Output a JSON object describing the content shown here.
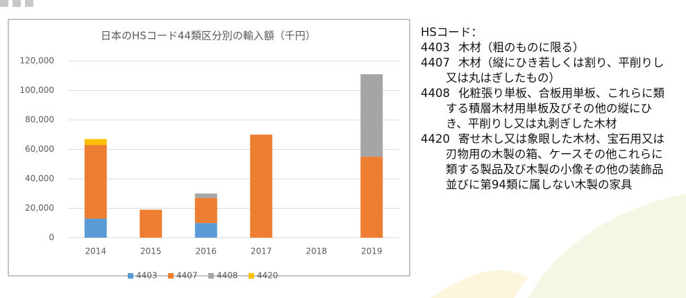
{
  "chart_data": {
    "type": "stacked-bar",
    "title": "日本のHSコード44類区分別の輸入額（千円）",
    "categories": [
      "2014",
      "2015",
      "2016",
      "2017",
      "2018",
      "2019"
    ],
    "series": [
      {
        "name": "4403",
        "color": "#5b9bd5",
        "values": [
          13000,
          0,
          10000,
          0,
          0,
          0
        ]
      },
      {
        "name": "4407",
        "color": "#ed7d31",
        "values": [
          50000,
          19000,
          17000,
          70000,
          0,
          55000
        ]
      },
      {
        "name": "4408",
        "color": "#a5a5a5",
        "values": [
          0,
          0,
          3000,
          0,
          0,
          56000
        ]
      },
      {
        "name": "4420",
        "color": "#ffc000",
        "values": [
          4000,
          0,
          0,
          0,
          0,
          0
        ]
      }
    ],
    "ylim": [
      0,
      120000
    ],
    "yticks": [
      0,
      {
        "value": 20000,
        "label": "20,000"
      },
      {
        "value": 40000,
        "label": "40,000"
      },
      {
        "value": 60000,
        "label": "60,000"
      },
      {
        "value": 80000,
        "label": "80,000"
      },
      {
        "value": 100000,
        "label": "100,000"
      },
      {
        "value": 120000,
        "label": "120,000"
      }
    ],
    "grid": true,
    "legend": "bottom"
  },
  "notes": {
    "heading": "HSコード：",
    "items": [
      {
        "code": "4403",
        "text": "木材（粗のものに限る）"
      },
      {
        "code": "4407",
        "text": "木材（縦にひき若しくは割り、平削りし又は丸はぎしたもの）"
      },
      {
        "code": "4408",
        "text": "化粧張り単板、合板用単板、これらに類する積層木材用単板及びその他の縦にひき、平削りし又は丸剥ぎした木材"
      },
      {
        "code": "4420",
        "text": "寄せ木し又は象眼した木材、宝石用又は刃物用の木製の箱、ケースその他これらに類する製品及び木製の小像その他の装飾品並びに第94類に属しない木製の家具"
      }
    ]
  }
}
